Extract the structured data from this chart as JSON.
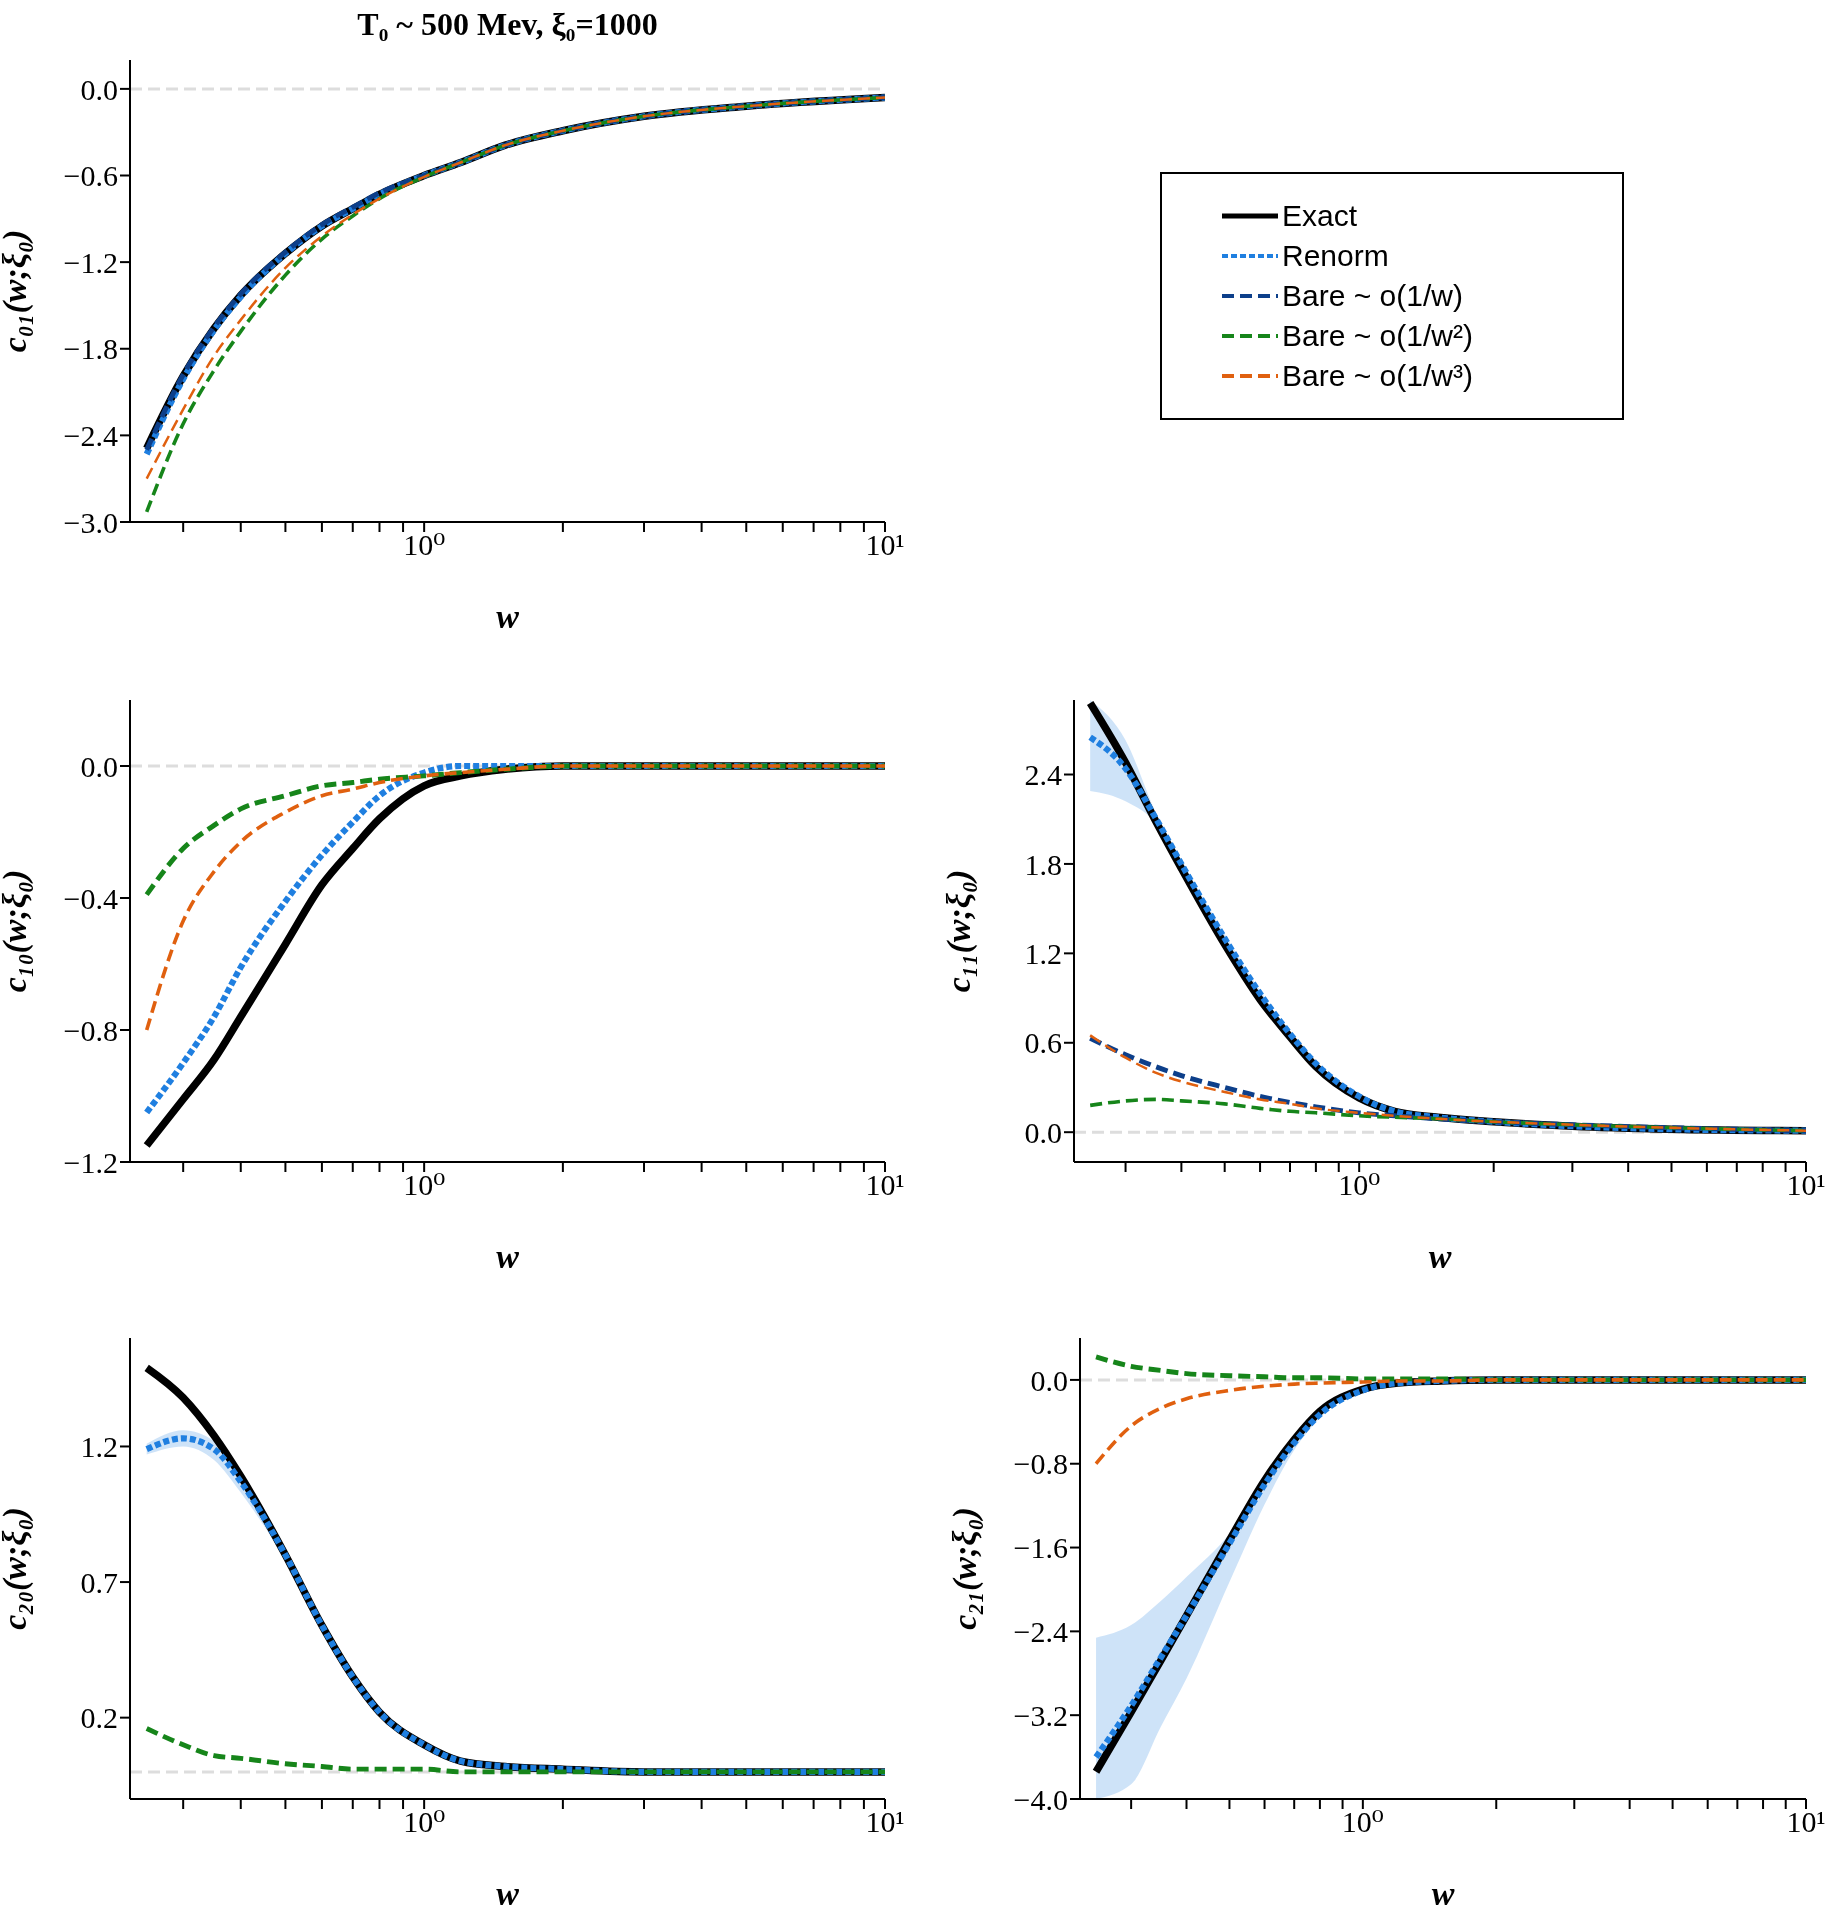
{
  "chart_data": [
    {
      "type": "line",
      "title": "T₀ ~ 500 Mev, ξ₀=1000",
      "xlabel": "w",
      "ylabel": "c₀₁(w;ξ₀)",
      "log": "x",
      "legend": "right",
      "xlim": [
        0.23,
        10
      ],
      "ylim": [
        -3.0,
        0.2
      ],
      "xticks": [
        {
          "value": 0.3,
          "label": null
        },
        {
          "value": 0.4,
          "label": null
        },
        {
          "value": 0.5,
          "label": null
        },
        {
          "value": 0.6,
          "label": null
        },
        {
          "value": 0.7,
          "label": null
        },
        {
          "value": 0.8,
          "label": null
        },
        {
          "value": 0.9,
          "label": null
        },
        {
          "value": 1,
          "label": "10⁰"
        },
        {
          "value": 2,
          "label": null
        },
        {
          "value": 3,
          "label": null
        },
        {
          "value": 4,
          "label": null
        },
        {
          "value": 5,
          "label": null
        },
        {
          "value": 6,
          "label": null
        },
        {
          "value": 7,
          "label": null
        },
        {
          "value": 8,
          "label": null
        },
        {
          "value": 9,
          "label": null
        },
        {
          "value": 10,
          "label": "10¹"
        }
      ],
      "yticks": [
        {
          "value": -3,
          "label": "−3.0"
        },
        {
          "value": -2.4,
          "label": "−2.4"
        },
        {
          "value": -1.8,
          "label": "−1.8"
        },
        {
          "value": -1.2,
          "label": "−1.2"
        },
        {
          "value": -0.6,
          "label": "−0.6"
        },
        {
          "value": 0,
          "label": "0.0"
        }
      ],
      "ref_lines": [
        {
          "axis": "y",
          "value": 0,
          "color": "#dddddd",
          "line_style": "dashed"
        }
      ],
      "x": [
        0.25,
        0.3,
        0.35,
        0.4,
        0.5,
        0.6,
        0.7,
        0.8,
        1,
        1.2,
        1.5,
        2,
        3,
        5,
        10
      ],
      "series": [
        {
          "name": "Exact",
          "color": "#000000",
          "line_style": "solid",
          "values": [
            -2.49,
            -1.99,
            -1.66,
            -1.43,
            -1.14,
            -0.95,
            -0.83,
            -0.73,
            -0.6,
            -0.51,
            -0.39,
            -0.29,
            -0.19,
            -0.12,
            -0.06
          ]
        },
        {
          "name": "Renorm",
          "color": "#1f7fe0",
          "line_style": "dotted",
          "values": [
            -2.53,
            -2.01,
            -1.67,
            -1.44,
            -1.14,
            -0.95,
            -0.83,
            -0.73,
            -0.6,
            -0.51,
            -0.39,
            -0.29,
            -0.19,
            -0.12,
            -0.06
          ]
        },
        {
          "name": "Bare ~ o(1/w)",
          "color": "#0d3f8a",
          "line_style": "dashed",
          "values": [
            -2.5,
            -1.98,
            -1.65,
            -1.42,
            -1.13,
            -0.94,
            -0.82,
            -0.72,
            -0.6,
            -0.51,
            -0.39,
            -0.29,
            -0.19,
            -0.12,
            -0.06
          ]
        },
        {
          "name": "Bare ~ o(1/w²)",
          "color": "#16851a",
          "line_style": "dashed",
          "values": [
            -2.93,
            -2.32,
            -1.95,
            -1.68,
            -1.29,
            -1.04,
            -0.88,
            -0.76,
            -0.61,
            -0.51,
            -0.39,
            -0.29,
            -0.19,
            -0.12,
            -0.06
          ]
        },
        {
          "name": "Bare ~ o(1/w³)",
          "color": "#e0600f",
          "line_style": "dashed",
          "values": [
            -2.7,
            -2.22,
            -1.85,
            -1.6,
            -1.24,
            -1.02,
            -0.87,
            -0.76,
            -0.61,
            -0.51,
            -0.39,
            -0.29,
            -0.19,
            -0.12,
            -0.06
          ]
        }
      ]
    },
    {
      "type": "line",
      "xlabel": "w",
      "ylabel": "c₁₀(w;ξ₀)",
      "log": "x",
      "xlim": [
        0.23,
        10
      ],
      "ylim": [
        -1.2,
        0.2
      ],
      "xticks": [
        {
          "value": 0.3,
          "label": null
        },
        {
          "value": 0.4,
          "label": null
        },
        {
          "value": 0.5,
          "label": null
        },
        {
          "value": 0.6,
          "label": null
        },
        {
          "value": 0.7,
          "label": null
        },
        {
          "value": 0.8,
          "label": null
        },
        {
          "value": 0.9,
          "label": null
        },
        {
          "value": 1,
          "label": "10⁰"
        },
        {
          "value": 2,
          "label": null
        },
        {
          "value": 3,
          "label": null
        },
        {
          "value": 4,
          "label": null
        },
        {
          "value": 5,
          "label": null
        },
        {
          "value": 6,
          "label": null
        },
        {
          "value": 7,
          "label": null
        },
        {
          "value": 8,
          "label": null
        },
        {
          "value": 9,
          "label": null
        },
        {
          "value": 10,
          "label": "10¹"
        }
      ],
      "yticks": [
        {
          "value": -1.2,
          "label": "−1.2"
        },
        {
          "value": -0.8,
          "label": "−0.8"
        },
        {
          "value": -0.4,
          "label": "−0.4"
        },
        {
          "value": 0,
          "label": "0.0"
        }
      ],
      "ref_lines": [
        {
          "axis": "y",
          "value": 0,
          "color": "#dddddd",
          "line_style": "dashed"
        }
      ],
      "x": [
        0.25,
        0.3,
        0.35,
        0.4,
        0.5,
        0.6,
        0.7,
        0.8,
        1,
        1.2,
        1.5,
        2,
        3,
        5,
        10
      ],
      "series": [
        {
          "color": "#000000",
          "line_style": "solid",
          "values": [
            -1.15,
            -1.01,
            -0.89,
            -0.76,
            -0.54,
            -0.36,
            -0.25,
            -0.16,
            -0.06,
            -0.03,
            -0.01,
            0,
            0,
            0,
            0
          ]
        },
        {
          "color": "#1f7fe0",
          "line_style": "dotted",
          "values": [
            -1.05,
            -0.9,
            -0.76,
            -0.61,
            -0.41,
            -0.27,
            -0.17,
            -0.09,
            -0.02,
            0,
            0,
            0,
            0,
            0,
            0
          ]
        },
        {
          "color": "#16851a",
          "line_style": "dashed",
          "values": [
            -0.39,
            -0.25,
            -0.18,
            -0.13,
            -0.09,
            -0.06,
            -0.05,
            -0.04,
            -0.03,
            -0.02,
            -0.01,
            0,
            0,
            0,
            0
          ]
        },
        {
          "color": "#e0600f",
          "line_style": "dashed",
          "values": [
            -0.8,
            -0.47,
            -0.32,
            -0.23,
            -0.14,
            -0.09,
            -0.07,
            -0.05,
            -0.03,
            -0.02,
            -0.01,
            0,
            0,
            0,
            0
          ]
        }
      ]
    },
    {
      "type": "line",
      "xlabel": "w",
      "ylabel": "c₁₁(w;ξ₀)",
      "log": "x",
      "xlim": [
        0.23,
        10
      ],
      "ylim": [
        -0.2,
        2.9
      ],
      "xticks": [
        {
          "value": 0.3,
          "label": null
        },
        {
          "value": 0.4,
          "label": null
        },
        {
          "value": 0.5,
          "label": null
        },
        {
          "value": 0.6,
          "label": null
        },
        {
          "value": 0.7,
          "label": null
        },
        {
          "value": 0.8,
          "label": null
        },
        {
          "value": 0.9,
          "label": null
        },
        {
          "value": 1,
          "label": "10⁰"
        },
        {
          "value": 2,
          "label": null
        },
        {
          "value": 3,
          "label": null
        },
        {
          "value": 4,
          "label": null
        },
        {
          "value": 5,
          "label": null
        },
        {
          "value": 6,
          "label": null
        },
        {
          "value": 7,
          "label": null
        },
        {
          "value": 8,
          "label": null
        },
        {
          "value": 9,
          "label": null
        },
        {
          "value": 10,
          "label": "10¹"
        }
      ],
      "yticks": [
        {
          "value": 0,
          "label": "0.0"
        },
        {
          "value": 0.6,
          "label": "0.6"
        },
        {
          "value": 1.2,
          "label": "1.2"
        },
        {
          "value": 1.8,
          "label": "1.8"
        },
        {
          "value": 2.4,
          "label": "2.4"
        }
      ],
      "ref_lines": [
        {
          "axis": "y",
          "value": 0,
          "color": "#dddddd",
          "line_style": "dashed"
        }
      ],
      "x": [
        0.25,
        0.3,
        0.35,
        0.4,
        0.5,
        0.6,
        0.7,
        0.8,
        1,
        1.2,
        1.5,
        2,
        3,
        5,
        10
      ],
      "series": [
        {
          "color": "#000000",
          "line_style": "solid",
          "values": [
            2.88,
            2.48,
            2.09,
            1.77,
            1.26,
            0.89,
            0.64,
            0.44,
            0.23,
            0.14,
            0.1,
            0.07,
            0.04,
            0.02,
            0.01
          ]
        },
        {
          "color": "#1f7fe0",
          "line_style": "dotted",
          "values": [
            2.65,
            2.44,
            2.11,
            1.8,
            1.3,
            0.93,
            0.66,
            0.46,
            0.24,
            0.14,
            0.1,
            0.07,
            0.04,
            0.02,
            0.01
          ],
          "lower": [
            2.29,
            2.22,
            2.07,
            1.75,
            1.26,
            0.9,
            0.64,
            0.44,
            0.23,
            0.14,
            0.1,
            0.07,
            0.04,
            0.02,
            0.01
          ],
          "upper": [
            2.9,
            2.63,
            2.15,
            1.83,
            1.33,
            0.95,
            0.67,
            0.47,
            0.25,
            0.14,
            0.1,
            0.07,
            0.04,
            0.02,
            0.01
          ]
        },
        {
          "color": "#0d3f8a",
          "line_style": "dashed",
          "values": [
            0.63,
            0.52,
            0.44,
            0.38,
            0.3,
            0.24,
            0.2,
            0.17,
            0.13,
            0.11,
            0.09,
            0.07,
            0.05,
            0.03,
            0.01
          ]
        },
        {
          "color": "#16851a",
          "line_style": "dashed",
          "values": [
            0.18,
            0.21,
            0.22,
            0.21,
            0.19,
            0.16,
            0.14,
            0.13,
            0.11,
            0.1,
            0.09,
            0.07,
            0.05,
            0.03,
            0.01
          ]
        },
        {
          "color": "#e0600f",
          "line_style": "dashed",
          "values": [
            0.65,
            0.5,
            0.4,
            0.34,
            0.27,
            0.22,
            0.19,
            0.16,
            0.13,
            0.11,
            0.09,
            0.07,
            0.05,
            0.03,
            0.01
          ]
        }
      ]
    },
    {
      "type": "line",
      "xlabel": "w",
      "ylabel": "c₂₀(w;ξ₀)",
      "log": "x",
      "xlim": [
        0.23,
        10
      ],
      "ylim": [
        -0.1,
        1.6
      ],
      "xticks": [
        {
          "value": 0.3,
          "label": null
        },
        {
          "value": 0.4,
          "label": null
        },
        {
          "value": 0.5,
          "label": null
        },
        {
          "value": 0.6,
          "label": null
        },
        {
          "value": 0.7,
          "label": null
        },
        {
          "value": 0.8,
          "label": null
        },
        {
          "value": 0.9,
          "label": null
        },
        {
          "value": 1,
          "label": "10⁰"
        },
        {
          "value": 2,
          "label": null
        },
        {
          "value": 3,
          "label": null
        },
        {
          "value": 4,
          "label": null
        },
        {
          "value": 5,
          "label": null
        },
        {
          "value": 6,
          "label": null
        },
        {
          "value": 7,
          "label": null
        },
        {
          "value": 8,
          "label": null
        },
        {
          "value": 9,
          "label": null
        },
        {
          "value": 10,
          "label": "10¹"
        }
      ],
      "yticks": [
        {
          "value": 0.2,
          "label": "0.2"
        },
        {
          "value": 0.7,
          "label": "0.7"
        },
        {
          "value": 1.2,
          "label": "1.2"
        }
      ],
      "ref_lines": [
        {
          "axis": "y",
          "value": 0,
          "color": "#dddddd",
          "line_style": "dashed"
        }
      ],
      "x": [
        0.25,
        0.3,
        0.35,
        0.4,
        0.5,
        0.6,
        0.7,
        0.8,
        1,
        1.2,
        1.5,
        2,
        3,
        5,
        10
      ],
      "series": [
        {
          "color": "#000000",
          "line_style": "solid",
          "values": [
            1.49,
            1.38,
            1.24,
            1.09,
            0.8,
            0.54,
            0.35,
            0.22,
            0.1,
            0.04,
            0.02,
            0.01,
            0,
            0,
            0
          ]
        },
        {
          "color": "#1f7fe0",
          "line_style": "dotted",
          "values": [
            1.19,
            1.23,
            1.19,
            1.07,
            0.8,
            0.54,
            0.35,
            0.22,
            0.1,
            0.04,
            0.02,
            0.01,
            0,
            0,
            0
          ],
          "lower": [
            1.17,
            1.2,
            1.15,
            1.03,
            0.78,
            0.53,
            0.35,
            0.22,
            0.1,
            0.04,
            0.02,
            0.01,
            0,
            0,
            0
          ],
          "upper": [
            1.21,
            1.26,
            1.22,
            1.1,
            0.82,
            0.55,
            0.35,
            0.22,
            0.1,
            0.04,
            0.02,
            0.01,
            0,
            0,
            0
          ]
        },
        {
          "color": "#16851a",
          "line_style": "dashed",
          "values": [
            0.16,
            0.1,
            0.06,
            0.05,
            0.03,
            0.02,
            0.01,
            0.01,
            0.01,
            0,
            0,
            0,
            0,
            0,
            0
          ]
        }
      ]
    },
    {
      "type": "line",
      "xlabel": "w",
      "ylabel": "c₂₁(w;ξ₀)",
      "log": "x",
      "xlim": [
        0.23,
        10
      ],
      "ylim": [
        -4.0,
        0.4
      ],
      "xticks": [
        {
          "value": 0.3,
          "label": null
        },
        {
          "value": 0.4,
          "label": null
        },
        {
          "value": 0.5,
          "label": null
        },
        {
          "value": 0.6,
          "label": null
        },
        {
          "value": 0.7,
          "label": null
        },
        {
          "value": 0.8,
          "label": null
        },
        {
          "value": 0.9,
          "label": null
        },
        {
          "value": 1,
          "label": "10⁰"
        },
        {
          "value": 2,
          "label": null
        },
        {
          "value": 3,
          "label": null
        },
        {
          "value": 4,
          "label": null
        },
        {
          "value": 5,
          "label": null
        },
        {
          "value": 6,
          "label": null
        },
        {
          "value": 7,
          "label": null
        },
        {
          "value": 8,
          "label": null
        },
        {
          "value": 9,
          "label": null
        },
        {
          "value": 10,
          "label": "10¹"
        }
      ],
      "yticks": [
        {
          "value": -4,
          "label": "−4.0"
        },
        {
          "value": -3.2,
          "label": "−3.2"
        },
        {
          "value": -2.4,
          "label": "−2.4"
        },
        {
          "value": -1.6,
          "label": "−1.6"
        },
        {
          "value": -0.8,
          "label": "−0.8"
        },
        {
          "value": 0,
          "label": "0.0"
        }
      ],
      "ref_lines": [
        {
          "axis": "y",
          "value": 0,
          "color": "#dddddd",
          "line_style": "dashed"
        }
      ],
      "x": [
        0.25,
        0.3,
        0.35,
        0.4,
        0.5,
        0.6,
        0.7,
        0.8,
        1,
        1.2,
        1.5,
        2,
        3,
        5,
        10
      ],
      "series": [
        {
          "color": "#000000",
          "line_style": "solid",
          "values": [
            -3.74,
            -3.17,
            -2.68,
            -2.25,
            -1.53,
            -0.96,
            -0.57,
            -0.3,
            -0.09,
            -0.03,
            -0.01,
            0,
            0,
            0,
            0
          ]
        },
        {
          "color": "#1f7fe0",
          "line_style": "dotted",
          "values": [
            -3.6,
            -3.11,
            -2.65,
            -2.25,
            -1.56,
            -1,
            -0.6,
            -0.33,
            -0.1,
            -0.03,
            -0.01,
            0,
            0,
            0,
            0
          ],
          "lower": [
            -4,
            -3.86,
            -3.31,
            -2.85,
            -1.93,
            -1.19,
            -0.67,
            -0.36,
            -0.1,
            -0.03,
            -0.01,
            0,
            0,
            0,
            0
          ],
          "upper": [
            -2.46,
            -2.34,
            -2.11,
            -1.88,
            -1.47,
            -0.99,
            -0.59,
            -0.32,
            -0.1,
            -0.03,
            -0.01,
            0,
            0,
            0,
            0
          ]
        },
        {
          "color": "#16851a",
          "line_style": "dashed",
          "values": [
            0.22,
            0.13,
            0.09,
            0.06,
            0.04,
            0.03,
            0.02,
            0.02,
            0.01,
            0.01,
            0.01,
            0,
            0,
            0,
            0
          ]
        },
        {
          "color": "#e0600f",
          "line_style": "dashed",
          "values": [
            -0.8,
            -0.44,
            -0.27,
            -0.18,
            -0.1,
            -0.06,
            -0.04,
            -0.03,
            -0.02,
            -0.01,
            -0.01,
            0,
            0,
            0,
            0
          ]
        }
      ]
    }
  ]
}
